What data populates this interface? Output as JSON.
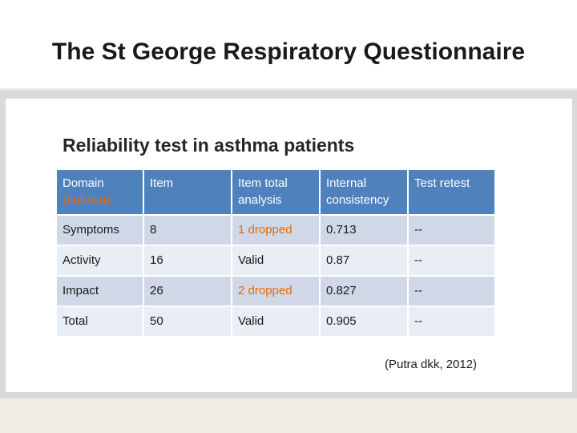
{
  "slide": {
    "title": "The St George Respiratory Questionnaire",
    "subtitle": "Reliability test in asthma patients",
    "source": "(Putra dkk, 2012)"
  },
  "table": {
    "headers": [
      {
        "main": "Domain",
        "sub": "(bahasa)"
      },
      {
        "main": "Item"
      },
      {
        "main": "Item total analysis"
      },
      {
        "main": "Internal consistency"
      },
      {
        "main": "Test retest"
      }
    ],
    "rows": [
      [
        "Symptoms",
        "8",
        "1 dropped",
        "0.713",
        "--"
      ],
      [
        "Activity",
        "16",
        "Valid",
        "0.87",
        "--"
      ],
      [
        "Impact",
        "26",
        "2 dropped",
        "0.827",
        "--"
      ],
      [
        "Total",
        "50",
        "Valid",
        "0.905",
        "--"
      ]
    ]
  },
  "colors": {
    "header_bg": "#4f81bd",
    "row_odd": "#d0d8e8",
    "row_even": "#e9edf4",
    "accent_text": "#e36c09"
  }
}
